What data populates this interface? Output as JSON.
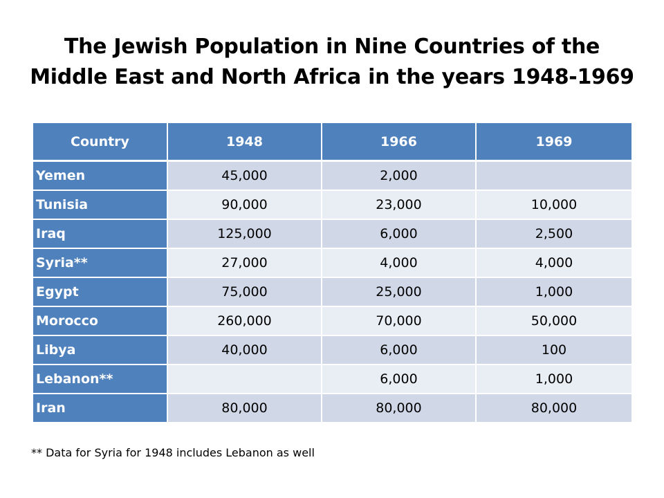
{
  "title": {
    "line1": "The Jewish Population in Nine Countries of the",
    "line2": "Middle East and North Africa in the years 1948-1969"
  },
  "table": {
    "headers": [
      "Country",
      "1948",
      "1966",
      "1969"
    ],
    "rows": [
      [
        "Yemen",
        "45,000",
        "2,000",
        ""
      ],
      [
        "Tunisia",
        "90,000",
        "23,000",
        "10,000"
      ],
      [
        "Iraq",
        "125,000",
        "6,000",
        "2,500"
      ],
      [
        "Syria**",
        "27,000",
        "4,000",
        "4,000"
      ],
      [
        "Egypt",
        "75,000",
        "25,000",
        "1,000"
      ],
      [
        "Morocco",
        "260,000",
        "70,000",
        "50,000"
      ],
      [
        "Libya",
        "40,000",
        "6,000",
        "100"
      ],
      [
        "Lebanon**",
        "",
        "6,000",
        "1,000"
      ],
      [
        "Iran",
        "80,000",
        "80,000",
        "80,000"
      ]
    ]
  },
  "footnote": "** Data for Syria for 1948 includes Lebanon as well",
  "colors": {
    "header_blue": "#4f81bd",
    "band_dark": "#d0d8e8",
    "band_light": "#e9edf4"
  }
}
